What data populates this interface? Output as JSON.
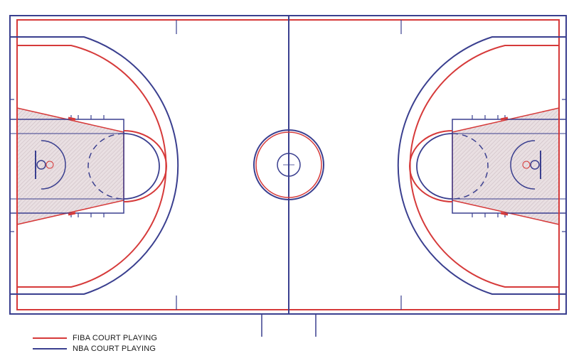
{
  "diagram": {
    "colors": {
      "fiba": "#d63a3a",
      "nba": "#3a3f8f",
      "paint_fill": "#e7dde0",
      "background": "#ffffff"
    }
  },
  "legend": {
    "items": [
      {
        "label": "FIBA COURT PLAYING",
        "color": "#d63a3a"
      },
      {
        "label": "NBA COURT PLAYING",
        "color": "#3a3f8f"
      }
    ]
  }
}
